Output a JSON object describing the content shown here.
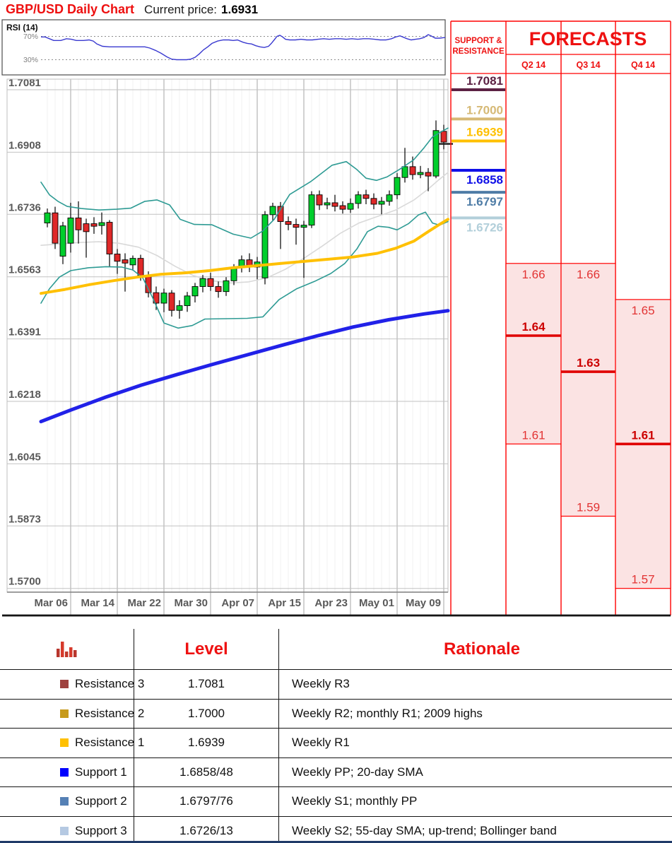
{
  "header": {
    "title": "GBP/USD Daily Chart",
    "current_price_label": "Current price:",
    "current_price": "1.6931"
  },
  "colors": {
    "accent_red": "#ee1111",
    "candle_up": "#00ce2c",
    "candle_down": "#df2828",
    "bollinger": "#2e9b94",
    "sma20": "#d9d9d9",
    "sma55": "#ffc000",
    "long_ma": "#2121e8",
    "rsi_line": "#3a3ad0",
    "grid_major": "#a6a6a6",
    "grid_minor": "#f0f0f0",
    "axis_text": "#595959",
    "forecast_fill": "#fbe3e3",
    "forecast_border": "#ff0000",
    "footer_bar": "#1f3a68"
  },
  "chart_data": {
    "type": "candlestick",
    "title": "GBP/USD Daily Chart",
    "current_price": 1.6931,
    "y_axis": {
      "ticks": [
        "1.7081",
        "1.6908",
        "1.6736",
        "1.6563",
        "1.6391",
        "1.6218",
        "1.6045",
        "1.5873",
        "1.5700"
      ],
      "min": 1.57,
      "max": 1.7081
    },
    "x_axis": {
      "ticks": [
        "Mar 06",
        "Mar 14",
        "Mar 22",
        "Mar 30",
        "Apr 07",
        "Apr 15",
        "Apr 23",
        "May 01",
        "May 09"
      ]
    },
    "candles_ohlc": [
      [
        1.6712,
        1.6752,
        1.67,
        1.674
      ],
      [
        1.674,
        1.6757,
        1.664,
        1.6656
      ],
      [
        1.662,
        1.6715,
        1.6598,
        1.6704
      ],
      [
        1.6656,
        1.6768,
        1.663,
        1.6726
      ],
      [
        1.6726,
        1.6772,
        1.6655,
        1.6693
      ],
      [
        1.671,
        1.6724,
        1.6616,
        1.6688
      ],
      [
        1.671,
        1.6728,
        1.6682,
        1.6703
      ],
      [
        1.6705,
        1.6741,
        1.668,
        1.6713
      ],
      [
        1.6714,
        1.672,
        1.6591,
        1.6626
      ],
      [
        1.6626,
        1.664,
        1.6571,
        1.6606
      ],
      [
        1.661,
        1.6628,
        1.6522,
        1.6601
      ],
      [
        1.6596,
        1.6622,
        1.658,
        1.6614
      ],
      [
        1.6614,
        1.6624,
        1.6552,
        1.6566
      ],
      [
        1.6566,
        1.6578,
        1.6506,
        1.6519
      ],
      [
        1.6519,
        1.6536,
        1.6471,
        1.649
      ],
      [
        1.649,
        1.653,
        1.6465,
        1.6518
      ],
      [
        1.6518,
        1.6526,
        1.6453,
        1.647
      ],
      [
        1.647,
        1.6498,
        1.6447,
        1.6483
      ],
      [
        1.6483,
        1.6521,
        1.6466,
        1.651
      ],
      [
        1.651,
        1.6546,
        1.6492,
        1.6536
      ],
      [
        1.6536,
        1.6568,
        1.652,
        1.6558
      ],
      [
        1.6558,
        1.6574,
        1.6524,
        1.6536
      ],
      [
        1.6536,
        1.655,
        1.6505,
        1.6522
      ],
      [
        1.6522,
        1.6562,
        1.651,
        1.6552
      ],
      [
        1.6552,
        1.6598,
        1.654,
        1.6588
      ],
      [
        1.6588,
        1.6622,
        1.6575,
        1.661
      ],
      [
        1.661,
        1.6628,
        1.6576,
        1.659
      ],
      [
        1.659,
        1.6618,
        1.6556,
        1.6604
      ],
      [
        1.656,
        1.6745,
        1.6542,
        1.6735
      ],
      [
        1.6735,
        1.6768,
        1.6718,
        1.6758
      ],
      [
        1.6758,
        1.677,
        1.664,
        1.6716
      ],
      [
        1.6716,
        1.673,
        1.6692,
        1.6708
      ],
      [
        1.6708,
        1.6724,
        1.6652,
        1.67
      ],
      [
        1.67,
        1.6718,
        1.656,
        1.6706
      ],
      [
        1.6706,
        1.68,
        1.6698,
        1.679
      ],
      [
        1.679,
        1.6802,
        1.6748,
        1.6762
      ],
      [
        1.6762,
        1.6782,
        1.675,
        1.6768
      ],
      [
        1.6768,
        1.679,
        1.6744,
        1.6758
      ],
      [
        1.676,
        1.6772,
        1.6738,
        1.675
      ],
      [
        1.675,
        1.678,
        1.674,
        1.6766
      ],
      [
        1.6766,
        1.68,
        1.6752,
        1.679
      ],
      [
        1.679,
        1.6804,
        1.6764,
        1.678
      ],
      [
        1.678,
        1.6794,
        1.675,
        1.6764
      ],
      [
        1.6764,
        1.6784,
        1.6736,
        1.6772
      ],
      [
        1.6772,
        1.6802,
        1.676,
        1.679
      ],
      [
        1.679,
        1.685,
        1.6778,
        1.6838
      ],
      [
        1.6838,
        1.692,
        1.6824,
        1.6868
      ],
      [
        1.6868,
        1.6896,
        1.6832,
        1.6846
      ],
      [
        1.6846,
        1.687,
        1.6836,
        1.6852
      ],
      [
        1.6852,
        1.6864,
        1.68,
        1.6842
      ],
      [
        1.6842,
        1.6996,
        1.6836,
        1.6968
      ],
      [
        1.6966,
        1.6984,
        1.6916,
        1.6936
      ]
    ],
    "overlays": {
      "bollinger_upper": [
        [
          58,
          1.6825
        ],
        [
          70,
          1.679
        ],
        [
          82,
          1.6772
        ],
        [
          95,
          1.6758
        ],
        [
          115,
          1.6752
        ],
        [
          140,
          1.6748
        ],
        [
          165,
          1.675
        ],
        [
          185,
          1.6753
        ],
        [
          205,
          1.6772
        ],
        [
          222,
          1.6776
        ],
        [
          240,
          1.6762
        ],
        [
          255,
          1.6722
        ],
        [
          275,
          1.6708
        ],
        [
          300,
          1.6707
        ],
        [
          330,
          1.6681
        ],
        [
          355,
          1.667
        ],
        [
          372,
          1.669
        ],
        [
          388,
          1.6722
        ],
        [
          410,
          1.6791
        ],
        [
          440,
          1.6827
        ],
        [
          470,
          1.6872
        ],
        [
          490,
          1.6882
        ],
        [
          505,
          1.686
        ],
        [
          518,
          1.6836
        ],
        [
          533,
          1.683
        ],
        [
          548,
          1.684
        ],
        [
          565,
          1.686
        ],
        [
          585,
          1.6886
        ],
        [
          600,
          1.692
        ],
        [
          612,
          1.695
        ],
        [
          622,
          1.6962
        ],
        [
          634,
          1.6975
        ]
      ],
      "bollinger_lower": [
        [
          58,
          1.649
        ],
        [
          70,
          1.653
        ],
        [
          84,
          1.6562
        ],
        [
          100,
          1.658
        ],
        [
          125,
          1.6588
        ],
        [
          150,
          1.6591
        ],
        [
          172,
          1.659
        ],
        [
          188,
          1.6582
        ],
        [
          202,
          1.656
        ],
        [
          216,
          1.6505
        ],
        [
          232,
          1.6435
        ],
        [
          252,
          1.6421
        ],
        [
          272,
          1.6428
        ],
        [
          290,
          1.6446
        ],
        [
          320,
          1.6447
        ],
        [
          350,
          1.6448
        ],
        [
          372,
          1.6452
        ],
        [
          395,
          1.65
        ],
        [
          420,
          1.653
        ],
        [
          445,
          1.655
        ],
        [
          468,
          1.6572
        ],
        [
          488,
          1.66
        ],
        [
          505,
          1.664
        ],
        [
          520,
          1.6688
        ],
        [
          535,
          1.6703
        ],
        [
          550,
          1.67
        ],
        [
          562,
          1.6693
        ],
        [
          578,
          1.671
        ],
        [
          592,
          1.6734
        ],
        [
          602,
          1.6742
        ],
        [
          612,
          1.6712
        ],
        [
          622,
          1.6706
        ],
        [
          634,
          1.6716
        ]
      ],
      "sma20": [
        [
          58,
          1.665
        ],
        [
          85,
          1.6654
        ],
        [
          112,
          1.6658
        ],
        [
          140,
          1.666
        ],
        [
          168,
          1.6656
        ],
        [
          196,
          1.6645
        ],
        [
          222,
          1.6622
        ],
        [
          248,
          1.6592
        ],
        [
          274,
          1.6566
        ],
        [
          300,
          1.6552
        ],
        [
          326,
          1.6546
        ],
        [
          352,
          1.6549
        ],
        [
          378,
          1.656
        ],
        [
          404,
          1.6584
        ],
        [
          430,
          1.6614
        ],
        [
          456,
          1.6648
        ],
        [
          482,
          1.6684
        ],
        [
          508,
          1.6712
        ],
        [
          534,
          1.673
        ],
        [
          560,
          1.6748
        ],
        [
          586,
          1.6776
        ],
        [
          606,
          1.6806
        ],
        [
          620,
          1.683
        ],
        [
          634,
          1.6852
        ]
      ],
      "sma55": [
        [
          58,
          1.6517
        ],
        [
          92,
          1.6528
        ],
        [
          126,
          1.6541
        ],
        [
          160,
          1.6552
        ],
        [
          194,
          1.6562
        ],
        [
          228,
          1.657
        ],
        [
          262,
          1.6574
        ],
        [
          296,
          1.658
        ],
        [
          330,
          1.6588
        ],
        [
          364,
          1.6594
        ],
        [
          398,
          1.66
        ],
        [
          432,
          1.6606
        ],
        [
          466,
          1.6612
        ],
        [
          500,
          1.6618
        ],
        [
          534,
          1.6628
        ],
        [
          560,
          1.6642
        ],
        [
          586,
          1.6662
        ],
        [
          606,
          1.6688
        ],
        [
          622,
          1.6708
        ],
        [
          634,
          1.6722
        ]
      ],
      "long_ma": [
        [
          58,
          1.6162
        ],
        [
          100,
          1.6194
        ],
        [
          150,
          1.623
        ],
        [
          200,
          1.6263
        ],
        [
          250,
          1.6292
        ],
        [
          300,
          1.632
        ],
        [
          350,
          1.6347
        ],
        [
          400,
          1.6374
        ],
        [
          450,
          1.64
        ],
        [
          500,
          1.6424
        ],
        [
          550,
          1.6444
        ],
        [
          600,
          1.646
        ],
        [
          634,
          1.6469
        ]
      ]
    },
    "rsi": {
      "label": "RSI (14)",
      "upper_label": "70%",
      "lower_label": "30%",
      "series": [
        [
          58,
          69
        ],
        [
          64,
          69
        ],
        [
          70,
          66
        ],
        [
          76,
          63
        ],
        [
          86,
          63
        ],
        [
          94,
          66
        ],
        [
          101,
          65
        ],
        [
          108,
          63
        ],
        [
          118,
          63
        ],
        [
          126,
          64
        ],
        [
          132,
          62
        ],
        [
          137,
          57
        ],
        [
          145,
          53
        ],
        [
          155,
          52
        ],
        [
          165,
          52
        ],
        [
          175,
          52
        ],
        [
          185,
          52
        ],
        [
          195,
          52
        ],
        [
          205,
          52
        ],
        [
          212,
          50
        ],
        [
          220,
          46
        ],
        [
          228,
          41
        ],
        [
          236,
          35
        ],
        [
          243,
          31
        ],
        [
          250,
          30
        ],
        [
          258,
          30
        ],
        [
          264,
          30
        ],
        [
          270,
          31
        ],
        [
          276,
          34
        ],
        [
          282,
          40
        ],
        [
          288,
          47
        ],
        [
          294,
          52
        ],
        [
          300,
          58
        ],
        [
          308,
          62
        ],
        [
          316,
          64
        ],
        [
          324,
          64
        ],
        [
          330,
          63
        ],
        [
          336,
          64
        ],
        [
          344,
          60
        ],
        [
          350,
          58
        ],
        [
          356,
          57
        ],
        [
          362,
          54
        ],
        [
          368,
          52
        ],
        [
          374,
          51
        ],
        [
          380,
          53
        ],
        [
          384,
          58
        ],
        [
          388,
          64
        ],
        [
          392,
          70
        ],
        [
          396,
          72
        ],
        [
          400,
          69
        ],
        [
          404,
          65
        ],
        [
          410,
          64
        ],
        [
          418,
          64
        ],
        [
          426,
          65
        ],
        [
          434,
          64
        ],
        [
          442,
          64
        ],
        [
          450,
          65
        ],
        [
          458,
          66
        ],
        [
          466,
          65
        ],
        [
          474,
          66
        ],
        [
          482,
          66
        ],
        [
          490,
          65
        ],
        [
          498,
          66
        ],
        [
          506,
          65
        ],
        [
          514,
          66
        ],
        [
          522,
          66
        ],
        [
          530,
          65
        ],
        [
          538,
          64
        ],
        [
          546,
          64
        ],
        [
          554,
          66
        ],
        [
          560,
          69
        ],
        [
          566,
          71
        ],
        [
          570,
          69
        ],
        [
          576,
          66
        ],
        [
          582,
          64
        ],
        [
          588,
          65
        ],
        [
          594,
          66
        ],
        [
          600,
          68
        ],
        [
          606,
          73
        ],
        [
          610,
          71
        ],
        [
          616,
          67
        ],
        [
          622,
          67
        ],
        [
          630,
          68
        ]
      ]
    }
  },
  "support_resistance": {
    "header_line1": "SUPPORT &",
    "header_line2": "RESISTANCE",
    "levels": [
      {
        "label": "1.7081",
        "value": 1.7081,
        "color": "#5c2143",
        "side": "resistance"
      },
      {
        "label": "1.7000",
        "value": 1.7,
        "color": "#d6b975",
        "side": "resistance"
      },
      {
        "label": "1.6939",
        "value": 1.6939,
        "color": "#ffc000",
        "side": "resistance"
      },
      {
        "label": "1.6858",
        "value": 1.6858,
        "color": "#1010e8",
        "side": "support"
      },
      {
        "label": "1.6797",
        "value": 1.6797,
        "color": "#4e7ca6",
        "side": "support"
      },
      {
        "label": "1.6726",
        "value": 1.6726,
        "color": "#b2cfda",
        "side": "support"
      }
    ]
  },
  "forecasts": {
    "title": "FORECASTS",
    "quarters": [
      {
        "label": "Q2 14",
        "high": 1.66,
        "mid": 1.64,
        "low": 1.61
      },
      {
        "label": "Q3 14",
        "high": 1.66,
        "mid": 1.63,
        "low": 1.59
      },
      {
        "label": "Q4 14",
        "high": 1.65,
        "mid": 1.61,
        "low": 1.57
      }
    ]
  },
  "table": {
    "level_header": "Level",
    "rationale_header": "Rationale",
    "rows": [
      {
        "name": "Resistance 3",
        "swatch": "#9e413e",
        "level": "1.7081",
        "rationale": "Weekly R3"
      },
      {
        "name": "Resistance 2",
        "swatch": "#c79a1b",
        "level": "1.7000",
        "rationale": "Weekly R2; monthly R1; 2009 highs"
      },
      {
        "name": "Resistance 1",
        "swatch": "#ffc000",
        "level": "1.6939",
        "rationale": "Weekly R1"
      },
      {
        "name": "Support 1",
        "swatch": "#0000fe",
        "level": "1.6858/48",
        "rationale": "Weekly PP; 20-day SMA"
      },
      {
        "name": "Support 2",
        "swatch": "#5580b5",
        "level": "1.6797/76",
        "rationale": "Weekly S1; monthly PP"
      },
      {
        "name": "Support 3",
        "swatch": "#b5c9e2",
        "level": "1.6726/13",
        "rationale": "Weekly S2; 55-day SMA; up-trend; Bollinger band"
      }
    ]
  }
}
